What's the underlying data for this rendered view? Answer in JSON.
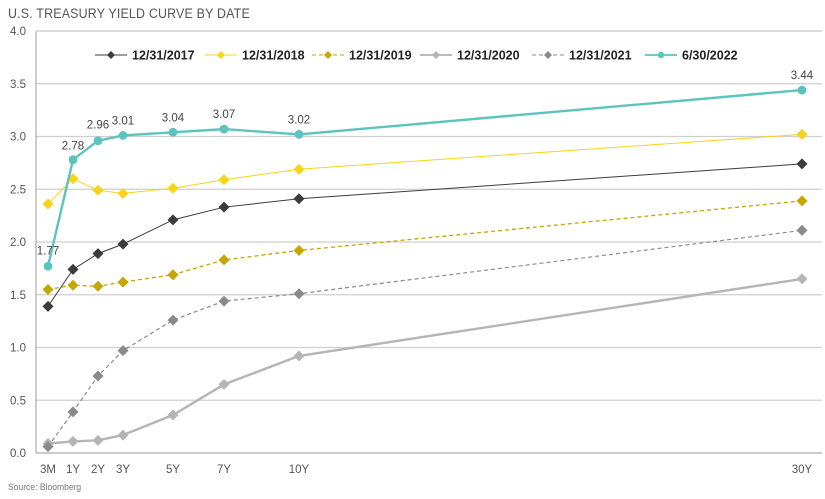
{
  "chart_data": {
    "type": "line",
    "title": "U.S. TREASURY YIELD CURVE BY DATE",
    "source": "Source: Bloomberg",
    "xlabel": "",
    "ylabel": "",
    "categories": [
      "3M",
      "1Y",
      "2Y",
      "3Y",
      "5Y",
      "7Y",
      "10Y",
      "30Y"
    ],
    "x_years": [
      0.25,
      1,
      2,
      3,
      5,
      7,
      10,
      30
    ],
    "ylim": [
      0,
      4
    ],
    "yticks": [
      "0.0",
      "0.5",
      "1.0",
      "1.5",
      "2.0",
      "2.5",
      "3.0",
      "3.5",
      "4.0"
    ],
    "grid": true,
    "legend_position": "top",
    "series": [
      {
        "name": "12/31/2017",
        "color": "#3c3c3c",
        "dash": false,
        "width": 1,
        "marker": "diamond",
        "values": [
          1.39,
          1.74,
          1.89,
          1.98,
          2.21,
          2.33,
          2.41,
          2.74
        ]
      },
      {
        "name": "12/31/2018",
        "color": "#f7d31b",
        "dash": false,
        "width": 1,
        "marker": "diamond",
        "values": [
          2.36,
          2.6,
          2.49,
          2.46,
          2.51,
          2.59,
          2.69,
          3.02
        ]
      },
      {
        "name": "12/31/2019",
        "color": "#c6a600",
        "dash": true,
        "width": 1.3,
        "marker": "diamond",
        "values": [
          1.55,
          1.59,
          1.58,
          1.62,
          1.69,
          1.83,
          1.92,
          2.39
        ]
      },
      {
        "name": "12/31/2020",
        "color": "#b5b5b5",
        "dash": false,
        "width": 2.4,
        "marker": "diamond",
        "values": [
          0.09,
          0.11,
          0.12,
          0.17,
          0.36,
          0.65,
          0.92,
          1.65
        ]
      },
      {
        "name": "12/31/2021",
        "color": "#8a8a8a",
        "dash": true,
        "width": 1.2,
        "marker": "diamond",
        "values": [
          0.06,
          0.39,
          0.73,
          0.97,
          1.26,
          1.44,
          1.51,
          2.11
        ]
      },
      {
        "name": "6/30/2022",
        "color": "#5cc3bf",
        "dash": false,
        "width": 2.4,
        "marker": "circle",
        "values": [
          1.77,
          2.78,
          2.96,
          3.01,
          3.04,
          3.07,
          3.02,
          3.44
        ],
        "data_labels": [
          "1.77",
          "2.78",
          "2.96",
          "3.01",
          "3.04",
          "3.07",
          "3.02",
          "3.44"
        ]
      }
    ]
  }
}
